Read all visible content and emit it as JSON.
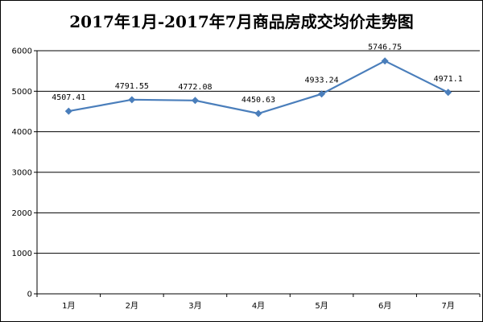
{
  "chart_data": {
    "type": "line",
    "title": "2017年1月-2017年7月商品房成交均价走势图",
    "xlabel": "",
    "ylabel": "",
    "categories": [
      "1月",
      "2月",
      "3月",
      "4月",
      "5月",
      "6月",
      "7月"
    ],
    "series": [
      {
        "values": [
          4507.41,
          4791.55,
          4772.08,
          4450.63,
          4933.24,
          5746.75,
          4971.1
        ],
        "data_labels": [
          "4507.41",
          "4791.55",
          "4772.08",
          "4450.63",
          "4933.24",
          "5746.75",
          "4971.1"
        ],
        "color": "#4a7ebb",
        "marker": "diamond"
      }
    ],
    "ylim": [
      0,
      6000
    ],
    "yticks": [
      0,
      1000,
      2000,
      3000,
      4000,
      5000,
      6000
    ],
    "grid": "horizontal",
    "legend": "none"
  }
}
